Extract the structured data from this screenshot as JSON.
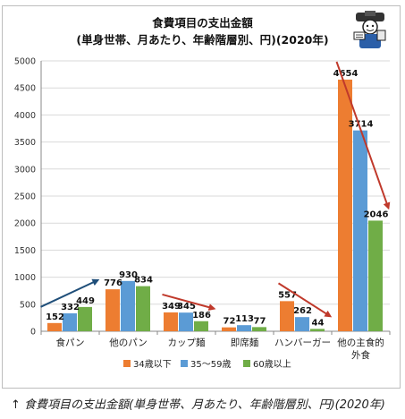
{
  "caption": "↑ 食費項目の支出金額(単身世帯、月あたり、年齢階層別、円)(2020年)",
  "colors": {
    "s1": "#ED7D31",
    "s2": "#5B9BD5",
    "s3": "#70AD47",
    "arrow_blue": "#1F4E79",
    "arrow_red": "#C0392B",
    "grid": "#d9d9d9"
  },
  "chart_data": {
    "type": "bar",
    "title": "食費項目の支出金額",
    "subtitle": "(単身世帯、月あたり、年齢階層別、円)(2020年)",
    "xlabel": "",
    "ylabel": "",
    "ylim": [
      0,
      5000
    ],
    "yticks": [
      0,
      500,
      1000,
      1500,
      2000,
      2500,
      3000,
      3500,
      4000,
      4500,
      5000
    ],
    "grid": true,
    "legend_position": "bottom",
    "categories": [
      "食パン",
      "他のパン",
      "カップ麺",
      "即席麺",
      "ハンバーガー",
      "他の主食的外食"
    ],
    "series": [
      {
        "name": "34歳以下",
        "values": [
          152,
          776,
          349,
          72,
          557,
          4654
        ]
      },
      {
        "name": "35〜59歳",
        "values": [
          332,
          930,
          345,
          113,
          262,
          3714
        ]
      },
      {
        "name": "60歳以上",
        "values": [
          449,
          834,
          186,
          77,
          44,
          2046
        ]
      }
    ],
    "annotations": [
      {
        "category": "食パン",
        "trend": "up",
        "color": "blue"
      },
      {
        "category": "カップ麺",
        "trend": "down",
        "color": "red"
      },
      {
        "category": "ハンバーガー",
        "trend": "down",
        "color": "red"
      },
      {
        "category": "他の主食的外食",
        "trend": "down",
        "color": "red"
      }
    ]
  }
}
